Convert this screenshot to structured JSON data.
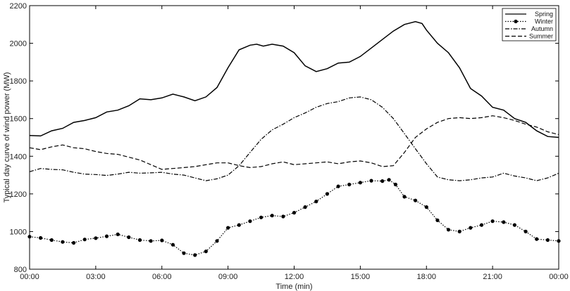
{
  "chart_data": {
    "type": "line",
    "xlabel": "Time (min)",
    "ylabel": "Typical day curve of wind power (MW)",
    "x_ticks": [
      "00:00",
      "03:00",
      "06:00",
      "09:00",
      "12:00",
      "15:00",
      "18:00",
      "21:00",
      "00:00"
    ],
    "x_tick_hours": [
      0,
      3,
      6,
      9,
      12,
      15,
      18,
      21,
      24
    ],
    "xlim_hours": [
      0,
      24
    ],
    "ylim": [
      800,
      2200
    ],
    "y_ticks": [
      800,
      1000,
      1200,
      1400,
      1600,
      1800,
      2000,
      2200
    ],
    "legend_position": "top-right",
    "grid": false,
    "series": [
      {
        "name": "Spring",
        "style": "solid",
        "marker": "none",
        "points": [
          [
            0,
            1510
          ],
          [
            0.5,
            1508
          ],
          [
            1,
            1535
          ],
          [
            1.5,
            1548
          ],
          [
            2,
            1580
          ],
          [
            2.5,
            1590
          ],
          [
            3,
            1605
          ],
          [
            3.5,
            1635
          ],
          [
            4,
            1645
          ],
          [
            4.5,
            1668
          ],
          [
            5,
            1705
          ],
          [
            5.5,
            1700
          ],
          [
            6,
            1710
          ],
          [
            6.5,
            1730
          ],
          [
            7,
            1715
          ],
          [
            7.5,
            1695
          ],
          [
            8,
            1715
          ],
          [
            8.5,
            1765
          ],
          [
            9,
            1870
          ],
          [
            9.5,
            1965
          ],
          [
            10,
            1990
          ],
          [
            10.3,
            1995
          ],
          [
            10.6,
            1985
          ],
          [
            11,
            1995
          ],
          [
            11.5,
            1985
          ],
          [
            12,
            1950
          ],
          [
            12.5,
            1880
          ],
          [
            13,
            1850
          ],
          [
            13.5,
            1865
          ],
          [
            14,
            1895
          ],
          [
            14.5,
            1900
          ],
          [
            15,
            1930
          ],
          [
            15.5,
            1975
          ],
          [
            16,
            2020
          ],
          [
            16.5,
            2065
          ],
          [
            17,
            2100
          ],
          [
            17.5,
            2115
          ],
          [
            17.8,
            2105
          ],
          [
            18,
            2070
          ],
          [
            18.5,
            2000
          ],
          [
            19,
            1950
          ],
          [
            19.5,
            1870
          ],
          [
            20,
            1760
          ],
          [
            20.5,
            1720
          ],
          [
            21,
            1660
          ],
          [
            21.5,
            1645
          ],
          [
            22,
            1600
          ],
          [
            22.5,
            1580
          ],
          [
            23,
            1535
          ],
          [
            23.5,
            1505
          ],
          [
            24,
            1500
          ]
        ]
      },
      {
        "name": "Winter",
        "style": "dotted",
        "marker": "circle",
        "points": [
          [
            0,
            973
          ],
          [
            0.5,
            966
          ],
          [
            1,
            955
          ],
          [
            1.5,
            945
          ],
          [
            2,
            940
          ],
          [
            2.5,
            958
          ],
          [
            3,
            965
          ],
          [
            3.5,
            975
          ],
          [
            4,
            985
          ],
          [
            4.5,
            970
          ],
          [
            5,
            955
          ],
          [
            5.5,
            950
          ],
          [
            6,
            953
          ],
          [
            6.5,
            930
          ],
          [
            7,
            885
          ],
          [
            7.5,
            875
          ],
          [
            8,
            895
          ],
          [
            8.5,
            950
          ],
          [
            9,
            1020
          ],
          [
            9.5,
            1035
          ],
          [
            10,
            1055
          ],
          [
            10.5,
            1075
          ],
          [
            11,
            1085
          ],
          [
            11.5,
            1080
          ],
          [
            12,
            1100
          ],
          [
            12.5,
            1130
          ],
          [
            13,
            1160
          ],
          [
            13.5,
            1200
          ],
          [
            14,
            1240
          ],
          [
            14.5,
            1250
          ],
          [
            15,
            1260
          ],
          [
            15.5,
            1270
          ],
          [
            16,
            1268
          ],
          [
            16.3,
            1275
          ],
          [
            16.6,
            1250
          ],
          [
            17,
            1185
          ],
          [
            17.5,
            1165
          ],
          [
            18,
            1130
          ],
          [
            18.5,
            1060
          ],
          [
            19,
            1010
          ],
          [
            19.5,
            1000
          ],
          [
            20,
            1020
          ],
          [
            20.5,
            1035
          ],
          [
            21,
            1055
          ],
          [
            21.5,
            1050
          ],
          [
            22,
            1035
          ],
          [
            22.5,
            1000
          ],
          [
            23,
            960
          ],
          [
            23.5,
            955
          ],
          [
            24,
            950
          ]
        ]
      },
      {
        "name": "Autumn",
        "style": "dashdot",
        "marker": "none",
        "points": [
          [
            0,
            1318
          ],
          [
            0.5,
            1335
          ],
          [
            1,
            1330
          ],
          [
            1.5,
            1328
          ],
          [
            2,
            1315
          ],
          [
            2.5,
            1305
          ],
          [
            3,
            1303
          ],
          [
            3.5,
            1298
          ],
          [
            4,
            1305
          ],
          [
            4.5,
            1315
          ],
          [
            5,
            1310
          ],
          [
            5.5,
            1312
          ],
          [
            6,
            1315
          ],
          [
            6.5,
            1305
          ],
          [
            7,
            1300
          ],
          [
            7.5,
            1285
          ],
          [
            8,
            1270
          ],
          [
            8.5,
            1280
          ],
          [
            9,
            1300
          ],
          [
            9.5,
            1350
          ],
          [
            10,
            1420
          ],
          [
            10.5,
            1490
          ],
          [
            11,
            1540
          ],
          [
            11.5,
            1570
          ],
          [
            12,
            1605
          ],
          [
            12.5,
            1630
          ],
          [
            13,
            1660
          ],
          [
            13.5,
            1680
          ],
          [
            14,
            1690
          ],
          [
            14.5,
            1710
          ],
          [
            15,
            1715
          ],
          [
            15.5,
            1700
          ],
          [
            16,
            1660
          ],
          [
            16.5,
            1600
          ],
          [
            17,
            1520
          ],
          [
            17.5,
            1440
          ],
          [
            18,
            1360
          ],
          [
            18.5,
            1290
          ],
          [
            19,
            1275
          ],
          [
            19.5,
            1270
          ],
          [
            20,
            1275
          ],
          [
            20.5,
            1285
          ],
          [
            21,
            1290
          ],
          [
            21.5,
            1310
          ],
          [
            22,
            1295
          ],
          [
            22.5,
            1285
          ],
          [
            23,
            1270
          ],
          [
            23.5,
            1285
          ],
          [
            24,
            1310
          ]
        ]
      },
      {
        "name": "Summer",
        "style": "dashed",
        "marker": "none",
        "points": [
          [
            0,
            1445
          ],
          [
            0.5,
            1435
          ],
          [
            1,
            1450
          ],
          [
            1.5,
            1460
          ],
          [
            2,
            1445
          ],
          [
            2.5,
            1440
          ],
          [
            3,
            1425
          ],
          [
            3.5,
            1415
          ],
          [
            4,
            1410
          ],
          [
            4.5,
            1395
          ],
          [
            5,
            1380
          ],
          [
            5.5,
            1355
          ],
          [
            6,
            1330
          ],
          [
            6.5,
            1335
          ],
          [
            7,
            1340
          ],
          [
            7.5,
            1345
          ],
          [
            8,
            1355
          ],
          [
            8.5,
            1365
          ],
          [
            9,
            1365
          ],
          [
            9.5,
            1350
          ],
          [
            10,
            1340
          ],
          [
            10.5,
            1345
          ],
          [
            11,
            1360
          ],
          [
            11.5,
            1370
          ],
          [
            12,
            1355
          ],
          [
            12.5,
            1360
          ],
          [
            13,
            1365
          ],
          [
            13.5,
            1370
          ],
          [
            14,
            1360
          ],
          [
            14.5,
            1370
          ],
          [
            15,
            1375
          ],
          [
            15.5,
            1365
          ],
          [
            16,
            1345
          ],
          [
            16.5,
            1350
          ],
          [
            17,
            1420
          ],
          [
            17.5,
            1500
          ],
          [
            18,
            1545
          ],
          [
            18.5,
            1580
          ],
          [
            19,
            1600
          ],
          [
            19.5,
            1605
          ],
          [
            20,
            1600
          ],
          [
            20.5,
            1605
          ],
          [
            21,
            1615
          ],
          [
            21.5,
            1605
          ],
          [
            22,
            1590
          ],
          [
            22.5,
            1570
          ],
          [
            23,
            1555
          ],
          [
            23.5,
            1530
          ],
          [
            24,
            1515
          ]
        ]
      }
    ]
  }
}
